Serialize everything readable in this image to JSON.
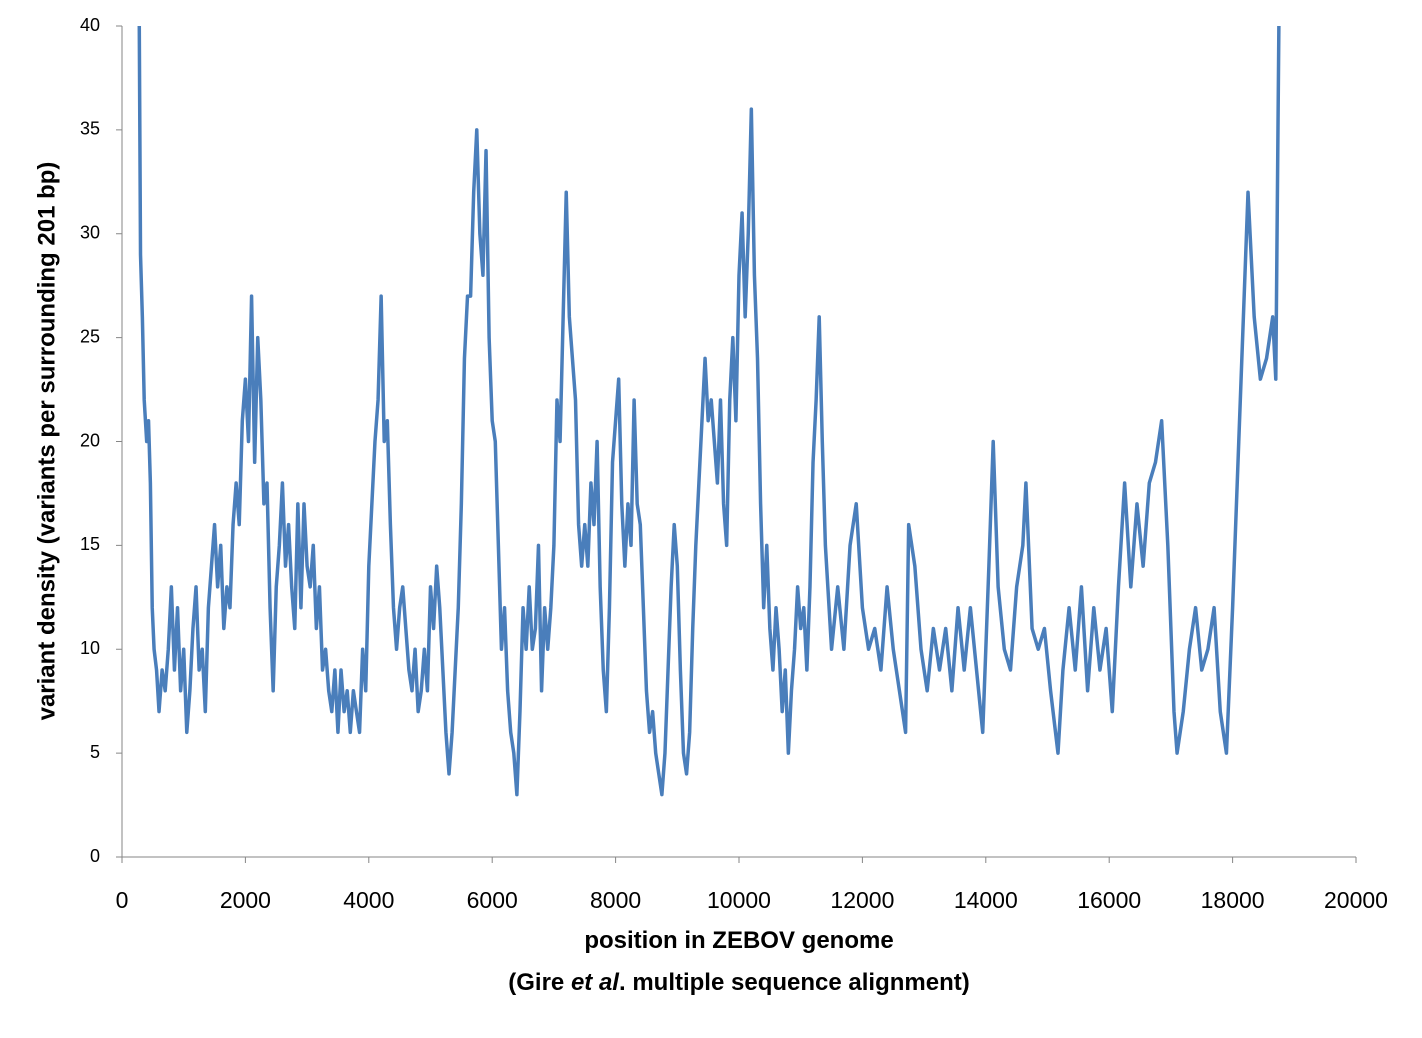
{
  "chart_data": {
    "type": "line",
    "x_label": "position in ZEBOV genome",
    "x_label_note": {
      "before": "(Gire ",
      "italic": "et al",
      "after": ". multiple sequence alignment)"
    },
    "y_label": "variant density (variants per surrounding 201 bp)",
    "color": "#4a7ebb",
    "xlim": [
      0,
      20000
    ],
    "xticks": [
      0,
      2000,
      4000,
      6000,
      8000,
      10000,
      12000,
      14000,
      16000,
      18000,
      20000
    ],
    "ylim": [
      0,
      40
    ],
    "yticks": [
      0,
      5,
      10,
      15,
      20,
      25,
      30,
      35,
      40
    ],
    "grid": false,
    "x": [
      280,
      300,
      330,
      360,
      400,
      430,
      460,
      490,
      520,
      560,
      600,
      650,
      700,
      750,
      800,
      850,
      900,
      950,
      1000,
      1050,
      1100,
      1150,
      1200,
      1250,
      1300,
      1350,
      1400,
      1450,
      1500,
      1550,
      1600,
      1650,
      1700,
      1750,
      1800,
      1850,
      1900,
      1950,
      2000,
      2050,
      2100,
      2150,
      2200,
      2250,
      2300,
      2350,
      2400,
      2450,
      2500,
      2550,
      2600,
      2650,
      2700,
      2750,
      2800,
      2850,
      2900,
      2950,
      3000,
      3050,
      3100,
      3150,
      3200,
      3250,
      3300,
      3350,
      3400,
      3450,
      3500,
      3550,
      3600,
      3650,
      3700,
      3750,
      3800,
      3850,
      3900,
      3950,
      4000,
      4050,
      4100,
      4150,
      4200,
      4250,
      4300,
      4350,
      4400,
      4450,
      4500,
      4550,
      4600,
      4650,
      4700,
      4750,
      4800,
      4850,
      4900,
      4950,
      5000,
      5050,
      5100,
      5150,
      5200,
      5250,
      5300,
      5350,
      5400,
      5450,
      5500,
      5550,
      5600,
      5650,
      5700,
      5750,
      5800,
      5850,
      5900,
      5950,
      6000,
      6050,
      6100,
      6150,
      6200,
      6250,
      6300,
      6350,
      6400,
      6450,
      6500,
      6550,
      6600,
      6650,
      6700,
      6750,
      6800,
      6850,
      6900,
      6950,
      7000,
      7050,
      7100,
      7150,
      7200,
      7250,
      7300,
      7350,
      7400,
      7450,
      7500,
      7550,
      7600,
      7650,
      7700,
      7750,
      7800,
      7850,
      7900,
      7950,
      8000,
      8050,
      8100,
      8150,
      8200,
      8250,
      8300,
      8350,
      8400,
      8450,
      8500,
      8550,
      8600,
      8650,
      8700,
      8750,
      8800,
      8850,
      8900,
      8950,
      9000,
      9050,
      9100,
      9150,
      9200,
      9250,
      9300,
      9350,
      9400,
      9450,
      9500,
      9550,
      9600,
      9650,
      9700,
      9750,
      9800,
      9850,
      9900,
      9950,
      10000,
      10050,
      10100,
      10150,
      10200,
      10250,
      10300,
      10350,
      10400,
      10450,
      10500,
      10550,
      10600,
      10650,
      10700,
      10750,
      10800,
      10850,
      10900,
      10950,
      11000,
      11050,
      11100,
      11150,
      11200,
      11250,
      11300,
      11350,
      11400,
      11500,
      11600,
      11700,
      11800,
      11900,
      12000,
      12100,
      12200,
      12300,
      12400,
      12500,
      12600,
      12700,
      12750,
      12850,
      12950,
      13050,
      13150,
      13250,
      13350,
      13450,
      13550,
      13650,
      13750,
      13850,
      13950,
      14050,
      14120,
      14200,
      14300,
      14400,
      14500,
      14600,
      14650,
      14750,
      14850,
      14950,
      15050,
      15170,
      15250,
      15350,
      15450,
      15550,
      15650,
      15750,
      15850,
      15950,
      16050,
      16150,
      16250,
      16350,
      16450,
      16550,
      16650,
      16750,
      16850,
      16950,
      17050,
      17100,
      17200,
      17300,
      17400,
      17500,
      17600,
      17700,
      17800,
      17900,
      18000,
      18100,
      18200,
      18250,
      18350,
      18450,
      18550,
      18650,
      18700,
      18750
    ],
    "values": [
      40,
      29,
      26,
      22,
      20,
      21,
      18,
      12,
      10,
      9,
      7,
      9,
      8,
      10,
      13,
      9,
      12,
      8,
      10,
      6,
      8,
      11,
      13,
      9,
      10,
      7,
      12,
      14,
      16,
      13,
      15,
      11,
      13,
      12,
      16,
      18,
      16,
      21,
      23,
      20,
      27,
      19,
      25,
      22,
      17,
      18,
      12,
      8,
      13,
      15,
      18,
      14,
      16,
      13,
      11,
      17,
      12,
      17,
      14,
      13,
      15,
      11,
      13,
      9,
      10,
      8,
      7,
      9,
      6,
      9,
      7,
      8,
      6,
      8,
      7,
      6,
      10,
      8,
      14,
      17,
      20,
      22,
      27,
      20,
      21,
      16,
      12,
      10,
      12,
      13,
      11,
      9,
      8,
      10,
      7,
      8,
      10,
      8,
      13,
      11,
      14,
      12,
      9,
      6,
      4,
      6,
      9,
      12,
      17,
      24,
      27,
      27,
      32,
      35,
      30,
      28,
      34,
      25,
      21,
      20,
      15,
      10,
      12,
      8,
      6,
      5,
      3,
      7,
      12,
      10,
      13,
      10,
      11,
      15,
      8,
      12,
      10,
      12,
      15,
      22,
      20,
      26,
      32,
      26,
      24,
      22,
      16,
      14,
      16,
      14,
      18,
      16,
      20,
      13,
      9,
      7,
      12,
      19,
      21,
      23,
      17,
      14,
      17,
      15,
      22,
      17,
      16,
      12,
      8,
      6,
      7,
      5,
      4,
      3,
      5,
      9,
      13,
      16,
      14,
      9,
      5,
      4,
      6,
      11,
      15,
      18,
      21,
      24,
      21,
      22,
      20,
      18,
      22,
      17,
      15,
      22,
      25,
      21,
      28,
      31,
      26,
      30,
      36,
      28,
      24,
      17,
      12,
      15,
      11,
      9,
      12,
      10,
      7,
      9,
      5,
      8,
      10,
      13,
      11,
      12,
      9,
      13,
      19,
      22,
      26,
      20,
      15,
      10,
      13,
      10,
      15,
      17,
      12,
      10,
      11,
      9,
      13,
      10,
      8,
      6,
      16,
      14,
      10,
      8,
      11,
      9,
      11,
      8,
      12,
      9,
      12,
      9,
      6,
      14,
      20,
      13,
      10,
      9,
      13,
      15,
      18,
      11,
      10,
      11,
      8,
      5,
      9,
      12,
      9,
      13,
      8,
      12,
      9,
      11,
      7,
      13,
      18,
      13,
      17,
      14,
      18,
      19,
      21,
      15,
      7,
      5,
      7,
      10,
      12,
      9,
      10,
      12,
      7,
      5,
      12,
      20,
      28,
      32,
      26,
      23,
      24,
      26,
      23,
      40
    ]
  }
}
